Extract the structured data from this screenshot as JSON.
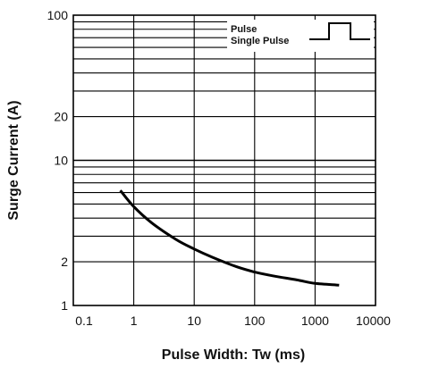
{
  "chart_data": {
    "type": "line",
    "title": "",
    "xlabel": "Pulse Width: Tw (ms)",
    "ylabel": "Surge Current  (A)",
    "x_scale": "log",
    "y_scale": "log",
    "xlim": [
      0.1,
      10000
    ],
    "ylim": [
      1,
      100
    ],
    "x_ticks": [
      "0.1",
      "1",
      "10",
      "100",
      "1000",
      "10000"
    ],
    "x_tick_values": [
      0.1,
      1,
      10,
      100,
      1000,
      10000
    ],
    "y_ticks": [
      "1",
      "2",
      "10",
      "20",
      "100"
    ],
    "y_tick_values": [
      1,
      2,
      10,
      20,
      100
    ],
    "grid": true,
    "legend": {
      "placement": "top-right",
      "entries": [
        "Pulse",
        "Single Pulse"
      ]
    },
    "series": [
      {
        "x": [
          0.6,
          1,
          2,
          5,
          10,
          20,
          50,
          100,
          200,
          500,
          1000,
          2500
        ],
        "y": [
          6.2,
          4.8,
          3.7,
          2.85,
          2.45,
          2.15,
          1.85,
          1.7,
          1.6,
          1.5,
          1.42,
          1.38
        ]
      }
    ],
    "line_color": "#000000"
  }
}
